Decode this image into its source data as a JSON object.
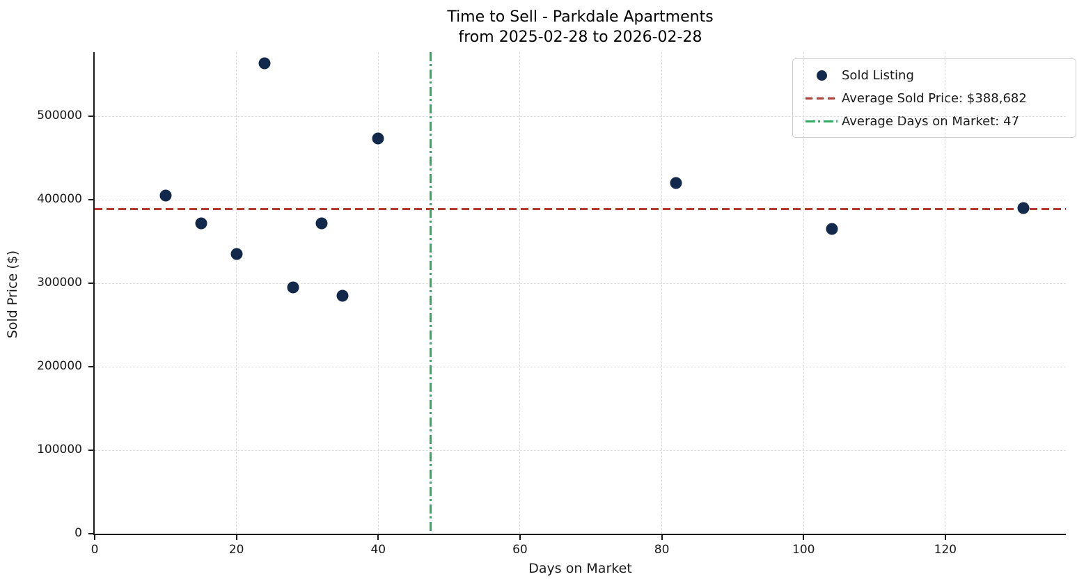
{
  "chart_data": {
    "type": "scatter",
    "title": "Time to Sell - Parkdale Apartments",
    "subtitle": "from 2025-02-28 to 2026-02-28",
    "xlabel": "Days on Market",
    "ylabel": "Sold Price ($)",
    "xlim": [
      0,
      137
    ],
    "ylim": [
      0,
      576667
    ],
    "x_ticks": [
      0,
      20,
      40,
      60,
      80,
      100,
      120
    ],
    "y_ticks": [
      0,
      100000,
      200000,
      300000,
      400000,
      500000
    ],
    "grid": true,
    "legend_position": "upper right",
    "colors": {
      "point": "#13294b",
      "avg_price_line": "#b23a2e",
      "avg_days_line": "#2ead5e"
    },
    "series": [
      {
        "name": "Sold Listing",
        "type": "scatter",
        "color": "#13294b",
        "points": [
          [
            10,
            405000
          ],
          [
            15,
            372000
          ],
          [
            20,
            335000
          ],
          [
            24,
            563000
          ],
          [
            28,
            295000
          ],
          [
            32,
            372000
          ],
          [
            35,
            285000
          ],
          [
            40,
            473000
          ],
          [
            82,
            420000
          ],
          [
            104,
            365000
          ],
          [
            131,
            390000
          ]
        ]
      },
      {
        "name": "Average Sold Price: $388,682",
        "type": "hline",
        "style": "dashed",
        "color": "#b23a2e",
        "value": 388682
      },
      {
        "name": "Average Days on Market: 47",
        "type": "vline",
        "style": "dashdot",
        "color": "#2ead5e",
        "value": 47.4
      }
    ]
  }
}
